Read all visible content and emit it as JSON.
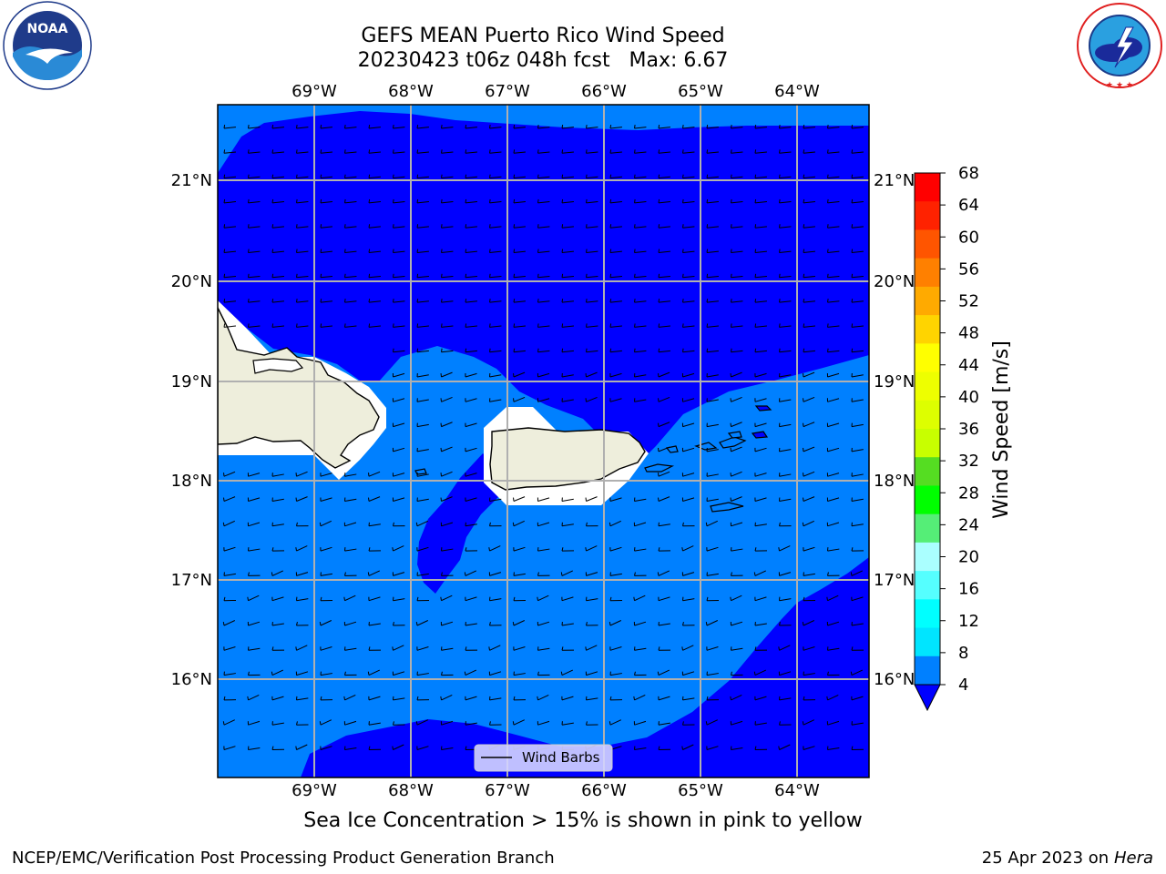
{
  "header": {
    "title_line1": "GEFS MEAN Puerto Rico Wind Speed",
    "title_line2": "20230423 t06z 048h fcst   Max: 6.67"
  },
  "logos": {
    "left": {
      "icon": "noaa-logo",
      "text": "NOAA",
      "ring_text": "NATIONAL OCEANIC AND ATMOSPHERIC ADMINISTRATION · U.S. DEPARTMENT OF COMMERCE"
    },
    "right": {
      "icon": "nws-logo",
      "ring_text": "NATIONAL WEATHER SERVICE"
    }
  },
  "map": {
    "lon_labels": [
      "69°W",
      "68°W",
      "67°W",
      "66°W",
      "65°W",
      "64°W"
    ],
    "lat_labels": [
      "21°N",
      "20°N",
      "19°N",
      "18°N",
      "17°N",
      "16°N"
    ],
    "legend": {
      "label": "Wind Barbs"
    },
    "colors": {
      "speed_4_8": "#0080ff",
      "speed_below_4": "#0000ff",
      "land": "#eeeedc",
      "gridline": "#b0b0b0"
    }
  },
  "colorbar": {
    "label": "Wind Speed [m/s]",
    "ticks": [
      "68",
      "64",
      "60",
      "56",
      "52",
      "48",
      "44",
      "40",
      "36",
      "32",
      "28",
      "24",
      "20",
      "16",
      "12",
      "8",
      "4"
    ],
    "colors": [
      "#ff0000",
      "#ff2200",
      "#ff5500",
      "#ff8000",
      "#ffaa00",
      "#ffd400",
      "#ffff00",
      "#eeff00",
      "#ddff00",
      "#c8ff00",
      "#55dd22",
      "#00ff00",
      "#55ee77",
      "#aaffff",
      "#55ffff",
      "#00ffff",
      "#00e5ff",
      "#0080ff"
    ],
    "extend_color": "#0000ff"
  },
  "footer": {
    "sea_ice_note": "Sea Ice Concentration > 15% is shown in pink to yellow",
    "left": "NCEP/EMC/Verification Post Processing Product Generation Branch",
    "right_date": "25 Apr 2023 on ",
    "right_host": "Hera"
  }
}
